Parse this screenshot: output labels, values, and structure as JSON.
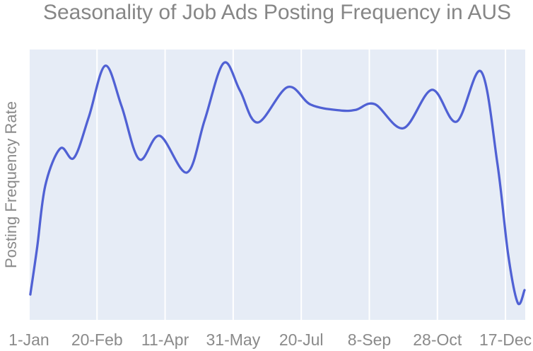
{
  "chart": {
    "title": "Seasonality of Job Ads Posting Frequency in AUS",
    "ylabel": "Posting Frequency Rate",
    "colors": {
      "line": "#5061d4",
      "plot_bg": "#e6ecf6",
      "grid": "#ffffff",
      "title_text": "#868686",
      "tick_text": "#8a8a8a"
    }
  },
  "chart_data": {
    "type": "line",
    "title": "Seasonality of Job Ads Posting Frequency in AUS",
    "xlabel": "",
    "ylabel": "Posting Frequency Rate",
    "x_unit": "day-of-year",
    "xlim": [
      -0.5,
      364.5
    ],
    "ylim": [
      0,
      1
    ],
    "grid": "vertical white gridlines on light blue-gray panel",
    "legend": "none",
    "y_tick_labels": "none (unlabeled normalized rate)",
    "ticks": [
      {
        "day": 0,
        "label": "1-Jan"
      },
      {
        "day": 50,
        "label": "20-Feb"
      },
      {
        "day": 100,
        "label": "11-Apr"
      },
      {
        "day": 150,
        "label": "31-May"
      },
      {
        "day": 200,
        "label": "20-Jul"
      },
      {
        "day": 250,
        "label": "8-Sep"
      },
      {
        "day": 300,
        "label": "28-Oct"
      },
      {
        "day": 350,
        "label": "17-Dec"
      }
    ],
    "series": [
      {
        "name": "posting-frequency-rate",
        "smooth": true,
        "x": [
          1,
          6,
          12,
          23,
          33,
          44,
          56,
          68,
          81,
          96,
          116,
          129,
          143,
          155,
          168,
          190,
          207,
          228,
          240,
          254,
          275,
          296,
          314,
          332,
          344,
          352,
          359,
          364
        ],
        "values": [
          0.094,
          0.267,
          0.497,
          0.634,
          0.599,
          0.751,
          0.94,
          0.791,
          0.594,
          0.681,
          0.545,
          0.738,
          0.95,
          0.848,
          0.73,
          0.861,
          0.796,
          0.775,
          0.777,
          0.798,
          0.709,
          0.851,
          0.733,
          0.919,
          0.581,
          0.241,
          0.063,
          0.11
        ]
      }
    ]
  }
}
